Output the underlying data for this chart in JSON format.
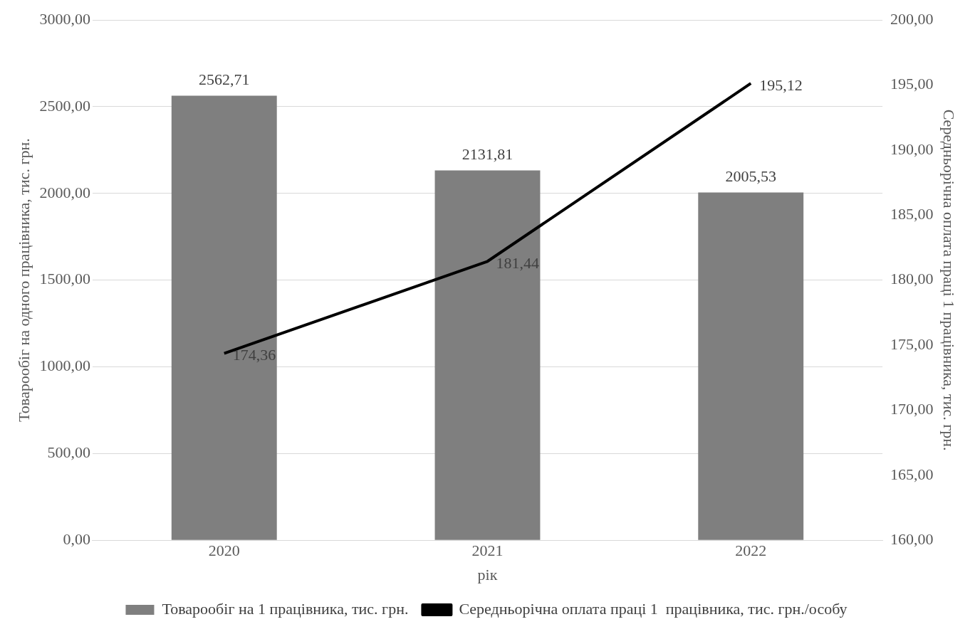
{
  "chart_data": {
    "type": "bar",
    "xlabel": "рік",
    "ylabel": "Товарообіг на одного працівника, тис. грн.",
    "y2label": "Середньорічна оплата праці 1 працівника, тис. грн.",
    "categories": [
      "2020",
      "2021",
      "2022"
    ],
    "series": [
      {
        "name": "Товарообіг на 1 працівника, тис. грн.",
        "color": "#7f7f7f",
        "values": [
          2562.71,
          2131.81,
          2005.53
        ],
        "value_labels": [
          "2562,71",
          "2131,81",
          "2005,53"
        ]
      },
      {
        "type": "line",
        "axis": "y2",
        "name": "Середньорічна оплата праці 1  працівника, тис. грн./особу",
        "color": "#000000",
        "values": [
          174.36,
          181.44,
          195.12
        ],
        "value_labels": [
          "174,36",
          "181,44",
          "195,12"
        ]
      }
    ],
    "ylim": [
      0,
      3000
    ],
    "yticks": [
      {
        "value": 0,
        "label": "0,00"
      },
      {
        "value": 500,
        "label": "500,00"
      },
      {
        "value": 1000,
        "label": "1000,00"
      },
      {
        "value": 1500,
        "label": "1500,00"
      },
      {
        "value": 2000,
        "label": "2000,00"
      },
      {
        "value": 2500,
        "label": "2500,00"
      },
      {
        "value": 3000,
        "label": "3000,00"
      }
    ],
    "y2lim": [
      160,
      200
    ],
    "y2ticks": [
      {
        "value": 160,
        "label": "160,00"
      },
      {
        "value": 165,
        "label": "165,00"
      },
      {
        "value": 170,
        "label": "170,00"
      },
      {
        "value": 175,
        "label": "175,00"
      },
      {
        "value": 180,
        "label": "180,00"
      },
      {
        "value": 185,
        "label": "185,00"
      },
      {
        "value": 190,
        "label": "190,00"
      },
      {
        "value": 195,
        "label": "195,00"
      },
      {
        "value": 200,
        "label": "200,00"
      }
    ],
    "grid": "y",
    "legend": "bottom",
    "marker": "none",
    "line_style": "solid"
  }
}
